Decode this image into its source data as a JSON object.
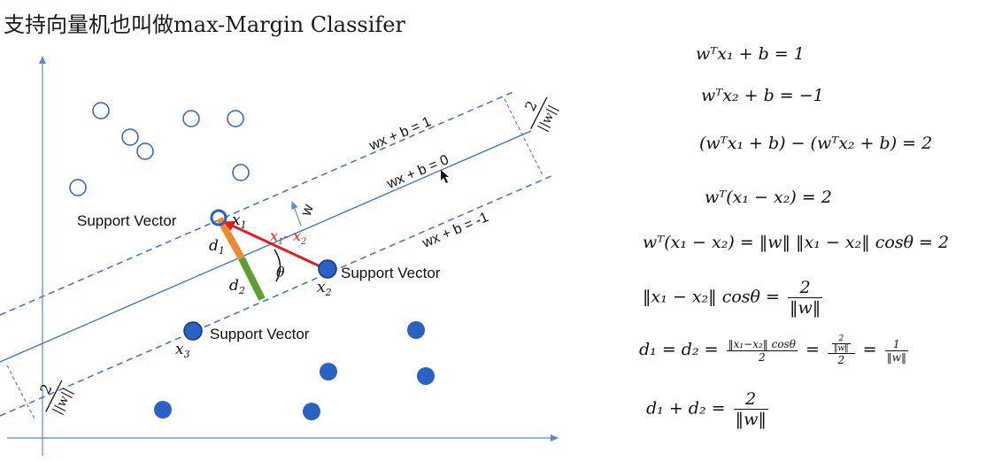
{
  "title": "支持向量机也叫做max-Margin Classifer",
  "diagram": {
    "lines": {
      "upper": "wx + b = 1",
      "middle": "wx + b = 0",
      "lower": "wx + b = -1"
    },
    "w_label": "w",
    "margin_num": "2",
    "margin_den": "||w||",
    "support_vector_label": "Support Vector",
    "x1": "x1",
    "x2": "x2",
    "x3": "x3",
    "d1": "d1",
    "d2": "d2",
    "diff": "x1- x2",
    "theta": "θ",
    "color_negative": "#2a62c4",
    "color_line": "#3b73c8",
    "color_diff": "#e02020",
    "color_d1": "#f08a30",
    "color_d2": "#5aa02c"
  },
  "equations": {
    "eq1": "wᵀx₁ + b = 1",
    "eq2": "wᵀx₂ + b = −1",
    "eq3": "(wᵀx₁ + b) − (wᵀx₂ + b) = 2",
    "eq4": "wᵀ(x₁ − x₂)  = 2",
    "eq5": "wᵀ(x₁ − x₂) = ‖w‖  ‖x₁ − x₂‖  cosθ = 2",
    "eq6_left": "‖x₁ − x₂‖  cosθ =",
    "eq6_num": "2",
    "eq6_den": "‖w‖",
    "eq7_left": "d₁ = d₂ =",
    "eq7_f1_num": "‖x₁−x₂‖  cosθ",
    "eq7_f1_den": "2",
    "eq7_f2_num_num": "2",
    "eq7_f2_num_den": "‖w‖",
    "eq7_f2_den": "2",
    "eq7_f3_num": "1",
    "eq7_f3_den": "‖w‖",
    "eq8_left": "d₁ + d₂ =",
    "eq8_num": "2",
    "eq8_den": "‖w‖"
  }
}
